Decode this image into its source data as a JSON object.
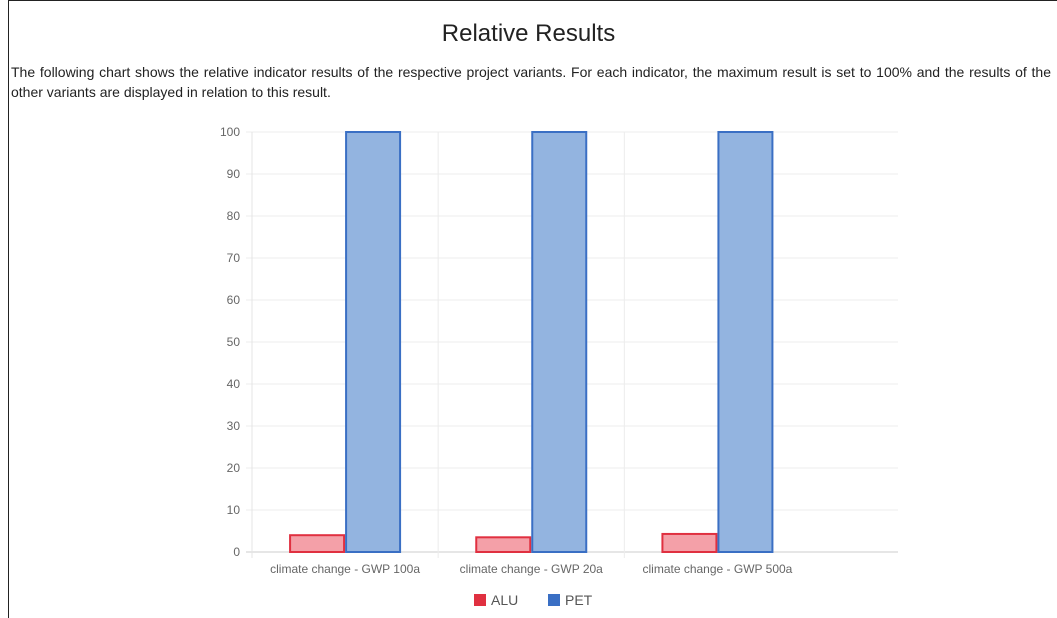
{
  "page": {
    "title": "Relative Results",
    "description": "The following chart shows the relative indicator results of the respective project variants. For each indicator, the maximum result is set to 100% and the results of the other variants are displayed in relation to this result."
  },
  "chart_data": {
    "type": "bar",
    "categories": [
      "climate change - GWP 100a",
      "climate change - GWP 20a",
      "climate change - GWP 500a"
    ],
    "series": [
      {
        "name": "ALU",
        "values": [
          4,
          3.5,
          4.3
        ],
        "color": "#e03040",
        "fill": "#f4a0a8"
      },
      {
        "name": "PET",
        "values": [
          100,
          100,
          100
        ],
        "color": "#3a6fc4",
        "fill": "#93b4e0"
      }
    ],
    "ylim": [
      0,
      100
    ],
    "yticks": [
      0,
      10,
      20,
      30,
      40,
      50,
      60,
      70,
      80,
      90,
      100
    ],
    "grid": true,
    "legend": "bottom"
  }
}
